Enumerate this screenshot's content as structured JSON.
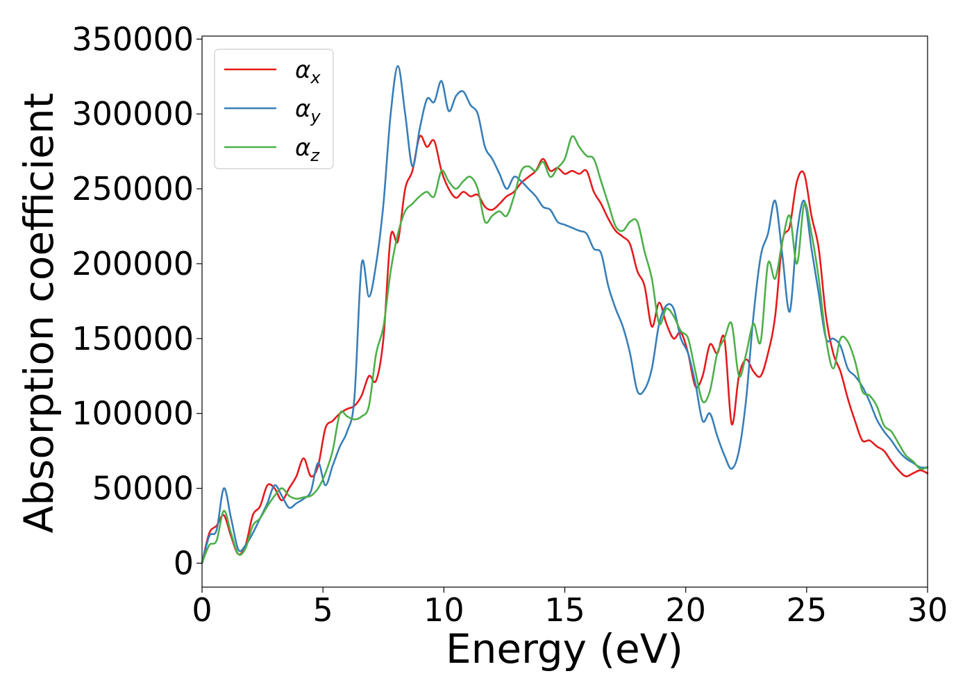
{
  "chart_data": {
    "type": "line",
    "xlabel": "Energy (eV)",
    "ylabel": "Absorption coefficient",
    "xlim": [
      0,
      30
    ],
    "ylim": [
      -16000,
      352000
    ],
    "xticks": [
      0,
      5,
      10,
      15,
      20,
      25,
      30
    ],
    "yticks": [
      0,
      50000,
      100000,
      150000,
      200000,
      250000,
      300000,
      350000
    ],
    "grid": false,
    "legend_position": "top-left",
    "series": [
      {
        "name": "α",
        "subscript": "x",
        "color": "#e41a1c",
        "x": [
          0,
          0.3,
          0.6,
          0.9,
          1.2,
          1.5,
          1.8,
          2.1,
          2.4,
          2.7,
          3.0,
          3.3,
          3.6,
          3.9,
          4.2,
          4.5,
          4.8,
          5.1,
          5.4,
          5.7,
          6.0,
          6.3,
          6.6,
          6.9,
          7.2,
          7.5,
          7.8,
          8.1,
          8.4,
          8.7,
          9.0,
          9.3,
          9.6,
          9.9,
          10.2,
          10.5,
          10.8,
          11.1,
          11.4,
          11.7,
          12.0,
          12.3,
          12.6,
          12.9,
          13.2,
          13.5,
          13.8,
          14.1,
          14.4,
          14.7,
          15.0,
          15.3,
          15.6,
          15.9,
          16.2,
          16.5,
          16.8,
          17.1,
          17.4,
          17.7,
          18.0,
          18.3,
          18.6,
          18.9,
          19.2,
          19.5,
          19.8,
          20.1,
          20.4,
          20.7,
          21.0,
          21.3,
          21.6,
          21.9,
          22.2,
          22.5,
          22.8,
          23.1,
          23.4,
          23.7,
          24.0,
          24.3,
          24.6,
          24.9,
          25.2,
          25.5,
          25.8,
          26.1,
          26.4,
          26.7,
          27.0,
          27.3,
          27.6,
          27.9,
          28.2,
          28.5,
          28.8,
          29.1,
          29.4,
          29.7,
          30.0
        ],
        "values": [
          0,
          20000,
          25000,
          32000,
          18000,
          6000,
          12000,
          32000,
          38000,
          52000,
          50000,
          42000,
          50000,
          58000,
          70000,
          58000,
          65000,
          90000,
          95000,
          100000,
          103000,
          105000,
          112000,
          125000,
          122000,
          150000,
          218000,
          215000,
          250000,
          262000,
          285000,
          278000,
          282000,
          262000,
          250000,
          244000,
          248000,
          245000,
          246000,
          238000,
          236000,
          240000,
          245000,
          248000,
          254000,
          258000,
          262000,
          270000,
          262000,
          264000,
          260000,
          262000,
          260000,
          262000,
          248000,
          240000,
          230000,
          222000,
          218000,
          213000,
          195000,
          185000,
          158000,
          174000,
          160000,
          150000,
          154000,
          140000,
          118000,
          125000,
          146000,
          140000,
          150000,
          93000,
          125000,
          136000,
          128000,
          125000,
          140000,
          165000,
          215000,
          225000,
          255000,
          260000,
          232000,
          210000,
          165000,
          140000,
          128000,
          110000,
          95000,
          82000,
          82000,
          78000,
          75000,
          68000,
          62000,
          58000,
          60000,
          62000,
          60000
        ]
      },
      {
        "name": "α",
        "subscript": "y",
        "color": "#377eb8",
        "x": [
          0,
          0.3,
          0.6,
          0.9,
          1.2,
          1.5,
          1.8,
          2.1,
          2.4,
          2.7,
          3.0,
          3.3,
          3.6,
          3.9,
          4.2,
          4.5,
          4.8,
          5.1,
          5.4,
          5.7,
          6.0,
          6.3,
          6.6,
          6.9,
          7.2,
          7.5,
          7.8,
          8.1,
          8.4,
          8.7,
          9.0,
          9.3,
          9.6,
          9.9,
          10.2,
          10.5,
          10.8,
          11.1,
          11.4,
          11.7,
          12.0,
          12.3,
          12.6,
          12.9,
          13.2,
          13.5,
          13.8,
          14.1,
          14.4,
          14.7,
          15.0,
          15.3,
          15.6,
          15.9,
          16.2,
          16.5,
          16.8,
          17.1,
          17.4,
          17.7,
          18.0,
          18.3,
          18.6,
          18.9,
          19.2,
          19.5,
          19.8,
          20.1,
          20.4,
          20.7,
          21.0,
          21.3,
          21.6,
          21.9,
          22.2,
          22.5,
          22.8,
          23.1,
          23.4,
          23.7,
          24.0,
          24.3,
          24.6,
          24.9,
          25.2,
          25.5,
          25.8,
          26.1,
          26.4,
          26.7,
          27.0,
          27.3,
          27.6,
          27.9,
          28.2,
          28.5,
          28.8,
          29.1,
          29.4,
          29.7,
          30.0
        ],
        "values": [
          0,
          18000,
          22000,
          50000,
          30000,
          9000,
          12000,
          20000,
          30000,
          40000,
          52000,
          45000,
          37000,
          40000,
          43000,
          48000,
          67000,
          52000,
          65000,
          78000,
          88000,
          110000,
          200000,
          178000,
          200000,
          240000,
          300000,
          332000,
          300000,
          265000,
          290000,
          310000,
          308000,
          322000,
          302000,
          312000,
          315000,
          306000,
          300000,
          278000,
          270000,
          260000,
          250000,
          258000,
          255000,
          250000,
          245000,
          238000,
          236000,
          228000,
          226000,
          224000,
          222000,
          220000,
          210000,
          207000,
          185000,
          170000,
          158000,
          140000,
          115000,
          116000,
          130000,
          160000,
          172000,
          170000,
          150000,
          140000,
          120000,
          95000,
          100000,
          85000,
          72000,
          63000,
          75000,
          110000,
          165000,
          205000,
          220000,
          242000,
          205000,
          168000,
          220000,
          242000,
          210000,
          180000,
          150000,
          150000,
          145000,
          130000,
          125000,
          118000,
          108000,
          96000,
          88000,
          82000,
          75000,
          70000,
          67000,
          64000,
          64000
        ]
      },
      {
        "name": "α",
        "subscript": "z",
        "color": "#4daf4a",
        "x": [
          0,
          0.3,
          0.6,
          0.9,
          1.2,
          1.5,
          1.8,
          2.1,
          2.4,
          2.7,
          3.0,
          3.3,
          3.6,
          3.9,
          4.2,
          4.5,
          4.8,
          5.1,
          5.4,
          5.7,
          6.0,
          6.3,
          6.6,
          6.9,
          7.2,
          7.5,
          7.8,
          8.1,
          8.4,
          8.7,
          9.0,
          9.3,
          9.6,
          9.9,
          10.2,
          10.5,
          10.8,
          11.1,
          11.4,
          11.7,
          12.0,
          12.3,
          12.6,
          12.9,
          13.2,
          13.5,
          13.8,
          14.1,
          14.4,
          14.7,
          15.0,
          15.3,
          15.6,
          15.9,
          16.2,
          16.5,
          16.8,
          17.1,
          17.4,
          17.7,
          18.0,
          18.3,
          18.6,
          18.9,
          19.2,
          19.5,
          19.8,
          20.1,
          20.4,
          20.7,
          21.0,
          21.3,
          21.6,
          21.9,
          22.2,
          22.5,
          22.8,
          23.1,
          23.4,
          23.7,
          24.0,
          24.3,
          24.6,
          24.9,
          25.2,
          25.5,
          25.8,
          26.1,
          26.4,
          26.7,
          27.0,
          27.3,
          27.6,
          27.9,
          28.2,
          28.5,
          28.8,
          29.1,
          29.4,
          29.7,
          30.0
        ],
        "values": [
          0,
          12000,
          15000,
          35000,
          20000,
          6000,
          10000,
          25000,
          30000,
          38000,
          45000,
          50000,
          45000,
          43000,
          44000,
          45000,
          50000,
          60000,
          75000,
          100000,
          98000,
          96000,
          98000,
          105000,
          140000,
          158000,
          195000,
          220000,
          235000,
          240000,
          245000,
          248000,
          245000,
          262000,
          255000,
          250000,
          255000,
          258000,
          250000,
          228000,
          232000,
          235000,
          232000,
          245000,
          262000,
          265000,
          262000,
          268000,
          258000,
          264000,
          270000,
          285000,
          278000,
          272000,
          270000,
          255000,
          240000,
          225000,
          222000,
          228000,
          228000,
          208000,
          190000,
          160000,
          170000,
          165000,
          155000,
          150000,
          128000,
          108000,
          115000,
          140000,
          150000,
          160000,
          125000,
          140000,
          160000,
          148000,
          200000,
          190000,
          215000,
          232000,
          200000,
          240000,
          220000,
          190000,
          150000,
          130000,
          150000,
          148000,
          135000,
          115000,
          112000,
          105000,
          92000,
          88000,
          80000,
          72000,
          68000,
          63000,
          64000
        ]
      }
    ]
  }
}
